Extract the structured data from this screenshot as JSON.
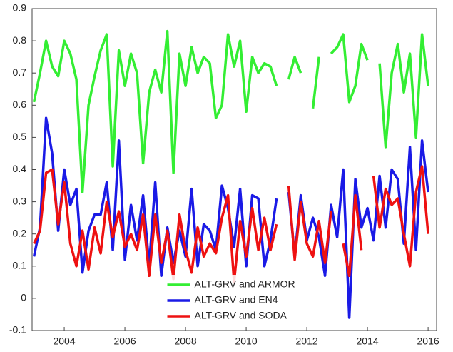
{
  "chart_data": {
    "type": "line",
    "x": [
      2003.0,
      2003.2,
      2003.4,
      2003.6,
      2003.8,
      2004.0,
      2004.2,
      2004.4,
      2004.6,
      2004.8,
      2005.0,
      2005.2,
      2005.4,
      2005.6,
      2005.8,
      2006.0,
      2006.2,
      2006.4,
      2006.6,
      2006.8,
      2007.0,
      2007.2,
      2007.4,
      2007.6,
      2007.8,
      2008.0,
      2008.2,
      2008.4,
      2008.6,
      2008.8,
      2009.0,
      2009.2,
      2009.4,
      2009.6,
      2009.8,
      2010.0,
      2010.2,
      2010.4,
      2010.6,
      2010.8,
      2011.0,
      2011.2,
      2011.4,
      2011.6,
      2011.8,
      2012.0,
      2012.2,
      2012.4,
      2012.6,
      2012.8,
      2013.0,
      2013.2,
      2013.4,
      2013.6,
      2013.8,
      2014.0,
      2014.2,
      2014.4,
      2014.6,
      2014.8,
      2015.0,
      2015.2,
      2015.4,
      2015.6,
      2015.8,
      2016.0
    ],
    "series": [
      {
        "name": "ALT-GRV and ARMOR",
        "color": "#33ee33",
        "values": [
          0.61,
          0.7,
          0.8,
          0.72,
          0.69,
          0.8,
          0.76,
          0.68,
          0.33,
          0.6,
          0.69,
          0.77,
          0.82,
          0.41,
          0.77,
          0.66,
          0.76,
          0.7,
          0.42,
          0.64,
          0.71,
          0.64,
          0.83,
          0.39,
          0.76,
          0.66,
          0.78,
          0.7,
          0.75,
          0.73,
          0.56,
          0.6,
          0.82,
          0.72,
          0.8,
          0.58,
          0.75,
          0.7,
          0.73,
          0.72,
          0.66,
          null,
          0.68,
          0.75,
          0.7,
          null,
          0.59,
          0.75,
          null,
          0.76,
          0.78,
          0.82,
          0.61,
          0.66,
          0.79,
          0.74,
          null,
          0.73,
          0.47,
          0.7,
          0.79,
          0.64,
          0.76,
          0.5,
          0.82,
          0.66
        ]
      },
      {
        "name": "ALT-GRV and EN4",
        "color": "#1a1ae6",
        "values": [
          0.13,
          0.22,
          0.56,
          0.45,
          0.21,
          0.4,
          0.29,
          0.34,
          0.08,
          0.21,
          0.26,
          0.26,
          0.36,
          0.15,
          0.49,
          0.12,
          0.29,
          0.18,
          0.32,
          0.1,
          0.36,
          0.07,
          0.22,
          0.11,
          0.21,
          0.13,
          0.34,
          0.1,
          0.23,
          0.21,
          0.15,
          0.35,
          0.28,
          0.16,
          0.34,
          0.1,
          0.32,
          0.31,
          0.1,
          0.18,
          0.31,
          null,
          0.33,
          0.13,
          0.32,
          0.18,
          0.25,
          0.19,
          0.07,
          0.29,
          0.19,
          0.4,
          -0.06,
          0.37,
          0.22,
          0.28,
          0.18,
          0.38,
          0.22,
          0.4,
          0.37,
          0.17,
          0.47,
          0.15,
          0.49,
          0.33
        ]
      },
      {
        "name": "ALT-GRV and SODA",
        "color": "#ee1111",
        "values": [
          0.17,
          0.21,
          0.39,
          0.4,
          0.23,
          0.36,
          0.17,
          0.1,
          0.21,
          0.09,
          0.22,
          0.14,
          0.3,
          0.19,
          0.27,
          0.16,
          0.2,
          0.15,
          0.26,
          0.07,
          0.26,
          0.11,
          0.21,
          0.06,
          0.26,
          0.15,
          0.08,
          0.22,
          0.13,
          0.17,
          0.14,
          0.25,
          0.32,
          0.05,
          0.24,
          0.13,
          0.28,
          0.15,
          0.25,
          0.15,
          0.23,
          null,
          0.35,
          0.12,
          0.3,
          0.17,
          0.13,
          0.24,
          0.11,
          0.27,
          null,
          0.17,
          0.07,
          0.32,
          0.15,
          null,
          0.38,
          0.22,
          0.34,
          0.29,
          0.31,
          0.2,
          0.1,
          0.33,
          0.41,
          0.2
        ]
      }
    ],
    "xlim": [
      2002.94,
      2016.28
    ],
    "xticks": [
      2004,
      2006,
      2008,
      2010,
      2012,
      2014,
      2016
    ],
    "ylim": [
      -0.1,
      0.9
    ],
    "yticks": [
      -0.1,
      0,
      0.1,
      0.2,
      0.3,
      0.4,
      0.5,
      0.6,
      0.7,
      0.8,
      0.9
    ],
    "grid": false,
    "legend": "lower center"
  }
}
